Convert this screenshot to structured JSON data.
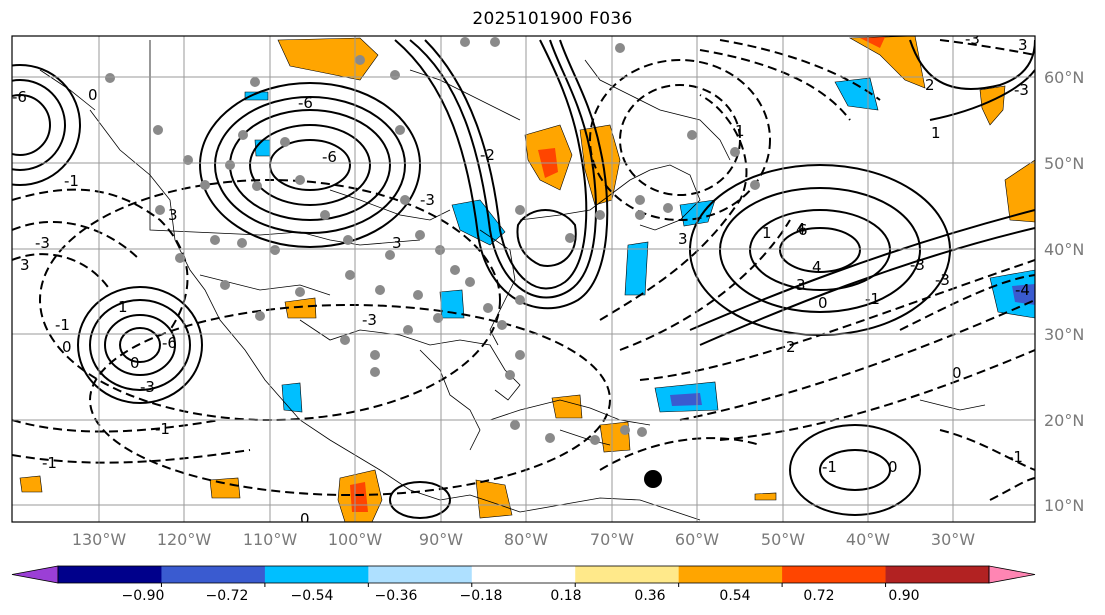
{
  "title": "2025101900 F036",
  "map": {
    "lon_labels": [
      "130°W",
      "120°W",
      "110°W",
      "100°W",
      "90°W",
      "80°W",
      "70°W",
      "60°W",
      "50°W",
      "40°W",
      "30°W"
    ],
    "lat_labels": [
      "60°N",
      "50°N",
      "40°N",
      "30°N",
      "20°N",
      "10°N"
    ],
    "contour_labels": [
      "0",
      "-6",
      "-6",
      "-3",
      "3",
      "-1",
      "-3",
      "4",
      "-3",
      "3",
      "0",
      "-1",
      "-3",
      "1",
      "-1",
      "2",
      "-4",
      "4",
      "1",
      "-3",
      "0",
      "-1",
      "-3",
      "0",
      "-1",
      "-1",
      "0",
      "1",
      "-3",
      "1",
      "2",
      "-1",
      "-6",
      "0",
      "-6",
      "3",
      "-3",
      "-2",
      "3",
      "3",
      "6",
      "3",
      "0"
    ]
  },
  "colorbar": {
    "tick_labels": [
      "−0.90",
      "−0.72",
      "−0.54",
      "−0.36",
      "−0.18",
      "0.18",
      "0.36",
      "0.54",
      "0.72",
      "0.90"
    ],
    "colors": [
      "#9b3fd6",
      "#00008b",
      "#3a5bd0",
      "#00bfff",
      "#aee0ff",
      "#ffffff",
      "#ffe98a",
      "#ffa500",
      "#ff4500",
      "#b22222",
      "#ff85b3"
    ]
  }
}
